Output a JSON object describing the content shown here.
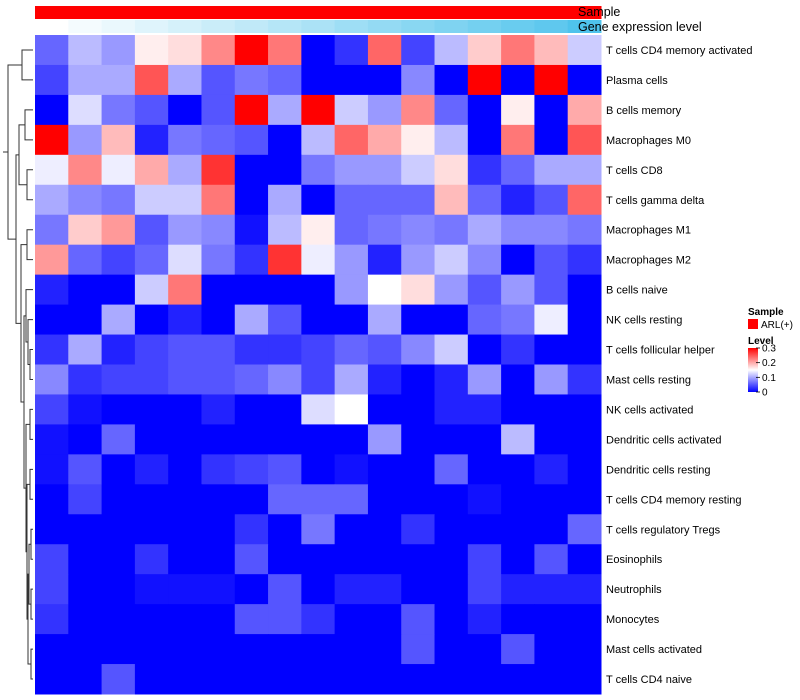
{
  "chart_data": {
    "type": "heatmap",
    "colors": {
      "low": "#0000ff",
      "mid": "#ffffff",
      "high": "#ff0000",
      "annot_sample": "#ff0000"
    },
    "annotations": {
      "sample": {
        "label": "Sample",
        "value": "ARL(+)"
      },
      "gene": {
        "label": "Gene expression level",
        "from": "#ffffff",
        "to": "#4fc3ec"
      }
    },
    "legend": {
      "sample_title": "Sample",
      "sample_entry": "ARL(+)",
      "level_title": "Level",
      "ticks": [
        "0.3",
        "0.2",
        "0.1",
        "0"
      ],
      "range": [
        0,
        0.3
      ]
    },
    "rows": [
      "T cells CD4 memory activated",
      "Plasma cells",
      "B cells memory",
      "Macrophages M0",
      "T cells CD8",
      "T cells gamma delta",
      "Macrophages M1",
      "Macrophages M2",
      "B cells naive",
      "NK cells resting",
      "T cells follicular helper",
      "Mast cells resting",
      "NK cells activated",
      "Dendritic cells activated",
      "Dendritic cells resting",
      "T cells CD4 memory resting",
      "T cells regulatory  Tregs",
      "Eosinophils",
      "Neutrophils",
      "Monocytes",
      "Mast cells activated",
      "T cells CD4 naive"
    ],
    "values": [
      [
        0.06,
        0.11,
        0.09,
        0.16,
        0.17,
        0.22,
        0.3,
        0.23,
        0.0,
        0.03,
        0.24,
        0.04,
        0.11,
        0.18,
        0.23,
        0.19,
        0.12
      ],
      [
        0.04,
        0.1,
        0.1,
        0.25,
        0.1,
        0.05,
        0.07,
        0.06,
        0.0,
        0.0,
        0.0,
        0.08,
        0.0,
        0.3,
        0.0,
        0.3,
        0.0
      ],
      [
        0.0,
        0.13,
        0.07,
        0.05,
        0.0,
        0.05,
        0.3,
        0.1,
        0.3,
        0.12,
        0.09,
        0.22,
        0.06,
        0.0,
        0.16,
        0.0,
        0.2
      ],
      [
        0.3,
        0.09,
        0.19,
        0.02,
        0.07,
        0.06,
        0.05,
        0.0,
        0.11,
        0.24,
        0.2,
        0.16,
        0.11,
        0.0,
        0.23,
        0.0,
        0.25
      ],
      [
        0.14,
        0.22,
        0.14,
        0.2,
        0.1,
        0.27,
        0.0,
        0.0,
        0.07,
        0.09,
        0.09,
        0.12,
        0.17,
        0.03,
        0.06,
        0.1,
        0.1
      ],
      [
        0.1,
        0.08,
        0.07,
        0.12,
        0.12,
        0.23,
        0.0,
        0.1,
        0.0,
        0.06,
        0.06,
        0.06,
        0.19,
        0.06,
        0.02,
        0.05,
        0.24
      ],
      [
        0.07,
        0.18,
        0.21,
        0.05,
        0.09,
        0.08,
        0.01,
        0.11,
        0.16,
        0.06,
        0.07,
        0.08,
        0.07,
        0.1,
        0.08,
        0.08,
        0.07
      ],
      [
        0.21,
        0.06,
        0.04,
        0.06,
        0.13,
        0.07,
        0.03,
        0.27,
        0.14,
        0.09,
        0.02,
        0.09,
        0.12,
        0.08,
        0.0,
        0.05,
        0.03
      ],
      [
        0.02,
        0.0,
        0.0,
        0.12,
        0.23,
        0.0,
        0.0,
        0.0,
        0.0,
        0.09,
        0.15,
        0.17,
        0.09,
        0.05,
        0.09,
        0.05,
        0.0
      ],
      [
        0.0,
        0.0,
        0.1,
        0.0,
        0.02,
        0.0,
        0.1,
        0.05,
        0.0,
        0.0,
        0.1,
        0.0,
        0.0,
        0.06,
        0.07,
        0.14,
        0.0
      ],
      [
        0.03,
        0.1,
        0.02,
        0.04,
        0.05,
        0.05,
        0.03,
        0.03,
        0.04,
        0.06,
        0.05,
        0.08,
        0.12,
        0.0,
        0.03,
        0.0,
        0.0
      ],
      [
        0.08,
        0.03,
        0.04,
        0.04,
        0.05,
        0.05,
        0.06,
        0.08,
        0.04,
        0.1,
        0.02,
        0.0,
        0.02,
        0.09,
        0.0,
        0.09,
        0.03
      ],
      [
        0.04,
        0.01,
        0.0,
        0.0,
        0.0,
        0.02,
        0.0,
        0.0,
        0.13,
        0.15,
        0.0,
        0.0,
        0.02,
        0.02,
        0.0,
        0.0,
        0.0
      ],
      [
        0.01,
        0.0,
        0.06,
        0.0,
        0.0,
        0.0,
        0.0,
        0.0,
        0.0,
        0.0,
        0.09,
        0.0,
        0.0,
        0.0,
        0.11,
        0.0,
        0.0
      ],
      [
        0.01,
        0.05,
        0.0,
        0.02,
        0.0,
        0.03,
        0.04,
        0.05,
        0.0,
        0.01,
        0.0,
        0.0,
        0.06,
        0.0,
        0.0,
        0.02,
        0.0
      ],
      [
        0.0,
        0.04,
        0.0,
        0.0,
        0.0,
        0.0,
        0.0,
        0.06,
        0.06,
        0.06,
        0.0,
        0.0,
        0.0,
        0.01,
        0.0,
        0.0,
        0.0
      ],
      [
        0.0,
        0.0,
        0.0,
        0.0,
        0.0,
        0.0,
        0.03,
        0.0,
        0.07,
        0.0,
        0.0,
        0.03,
        0.0,
        0.0,
        0.0,
        0.0,
        0.06
      ],
      [
        0.04,
        0.0,
        0.0,
        0.03,
        0.0,
        0.0,
        0.05,
        0.0,
        0.0,
        0.0,
        0.0,
        0.0,
        0.0,
        0.04,
        0.0,
        0.05,
        0.0
      ],
      [
        0.04,
        0.0,
        0.0,
        0.01,
        0.01,
        0.01,
        0.0,
        0.05,
        0.0,
        0.02,
        0.02,
        0.0,
        0.0,
        0.04,
        0.02,
        0.02,
        0.02
      ],
      [
        0.03,
        0.0,
        0.0,
        0.0,
        0.0,
        0.0,
        0.05,
        0.05,
        0.03,
        0.0,
        0.0,
        0.05,
        0.0,
        0.02,
        0.0,
        0.0,
        0.0
      ],
      [
        0.0,
        0.0,
        0.0,
        0.0,
        0.0,
        0.0,
        0.0,
        0.0,
        0.0,
        0.0,
        0.0,
        0.05,
        0.0,
        0.0,
        0.05,
        0.0,
        0.0
      ],
      [
        0.0,
        0.0,
        0.05,
        0.0,
        0.0,
        0.0,
        0.0,
        0.0,
        0.0,
        0.0,
        0.0,
        0.0,
        0.0,
        0.0,
        0.0,
        0.0,
        0.0
      ]
    ],
    "gene_expression": [
      0.0,
      0.06,
      0.12,
      0.18,
      0.24,
      0.3,
      0.36,
      0.42,
      0.48,
      0.55,
      0.61,
      0.67,
      0.73,
      0.79,
      0.85,
      0.91,
      1.0
    ]
  }
}
